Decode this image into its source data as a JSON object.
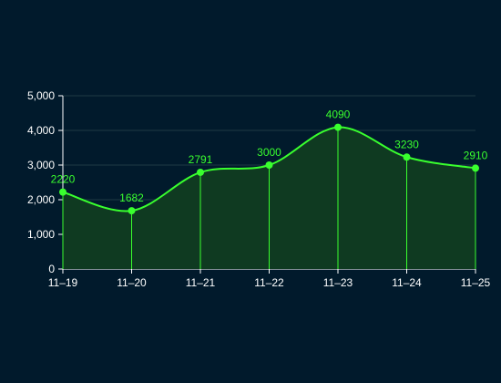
{
  "colors": {
    "background": "#011a2c",
    "line": "#39ff2e",
    "area": "#0f3a21",
    "grid": "#1e3a44",
    "axis_text": "#ffffff",
    "label_text": "#39ff2e",
    "drop_line": "#39ff2e"
  },
  "chart_data": {
    "type": "area",
    "title": "",
    "xlabel": "",
    "ylabel": "",
    "categories": [
      "11–19",
      "11–20",
      "11–21",
      "11–22",
      "11–23",
      "11–24",
      "11–25"
    ],
    "series": [
      {
        "values": [
          2220,
          1682,
          2791,
          3000,
          4090,
          3230,
          2910
        ]
      }
    ],
    "data_labels": [
      "2220",
      "1682",
      "2791",
      "3000",
      "4090",
      "3230",
      "2910"
    ],
    "ylim": [
      0,
      5000
    ],
    "yticks": [
      0,
      1000,
      2000,
      3000,
      4000,
      5000
    ],
    "ytick_labels": [
      "0",
      "1,000",
      "2,000",
      "3,000",
      "4,000",
      "5,000"
    ],
    "grid": "horizontal",
    "smooth": true,
    "markers": true,
    "drop_lines": true
  }
}
